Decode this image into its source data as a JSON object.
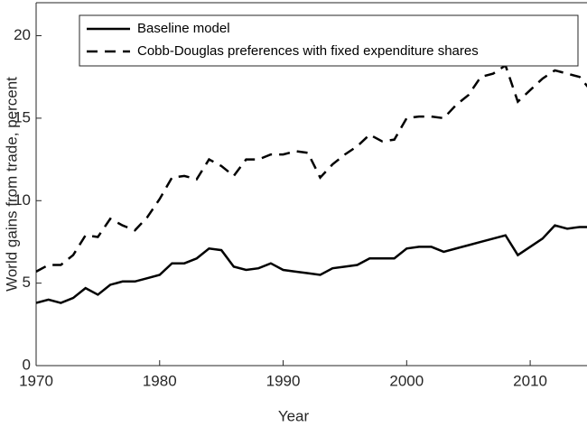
{
  "chart_data": {
    "type": "line",
    "x_label": "Year",
    "y_label": "World gains from trade, percent",
    "x": [
      1970,
      1971,
      1972,
      1973,
      1974,
      1975,
      1976,
      1977,
      1978,
      1979,
      1980,
      1981,
      1982,
      1983,
      1984,
      1985,
      1986,
      1987,
      1988,
      1989,
      1990,
      1991,
      1992,
      1993,
      1994,
      1995,
      1996,
      1997,
      1998,
      1999,
      2000,
      2001,
      2002,
      2003,
      2004,
      2005,
      2006,
      2007,
      2008,
      2009,
      2010,
      2011,
      2012,
      2013,
      2014,
      2015
    ],
    "series": [
      {
        "name": "Baseline model",
        "color": "#000000",
        "dash": "solid",
        "values": [
          3.8,
          4.0,
          3.8,
          4.1,
          4.7,
          4.3,
          4.9,
          5.1,
          5.1,
          5.3,
          5.5,
          6.2,
          6.2,
          6.5,
          7.1,
          7.0,
          6.0,
          5.8,
          5.9,
          6.2,
          5.8,
          5.7,
          5.6,
          5.5,
          5.9,
          6.0,
          6.1,
          6.5,
          6.5,
          6.5,
          7.1,
          7.2,
          7.2,
          6.9,
          7.1,
          7.3,
          7.5,
          7.7,
          7.9,
          6.7,
          7.2,
          7.7,
          8.5,
          8.3,
          8.4,
          8.4
        ]
      },
      {
        "name": "Cobb-Douglas preferences with fixed expenditure shares",
        "color": "#000000",
        "dash": "dashed",
        "values": [
          5.7,
          6.1,
          6.1,
          6.7,
          7.9,
          7.8,
          8.9,
          8.5,
          8.2,
          9.0,
          10.1,
          11.4,
          11.5,
          11.3,
          12.5,
          12.1,
          11.5,
          12.5,
          12.5,
          12.8,
          12.8,
          13.0,
          12.9,
          11.4,
          12.2,
          12.8,
          13.3,
          14.0,
          13.6,
          13.7,
          15.0,
          15.1,
          15.1,
          15.0,
          15.8,
          16.4,
          17.5,
          17.7,
          18.2,
          16.0,
          16.7,
          17.4,
          17.9,
          17.7,
          17.5,
          16.6
        ]
      }
    ],
    "xlim": [
      1970,
      2014.6
    ],
    "xticks": [
      1970,
      1980,
      1990,
      2000,
      2010
    ],
    "ylim": [
      0,
      22
    ],
    "yticks": [
      0,
      5,
      10,
      15,
      20
    ],
    "legend": "upper-left",
    "grid": false
  }
}
